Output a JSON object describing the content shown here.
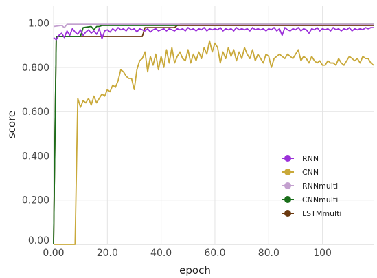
{
  "chart_data": {
    "type": "line",
    "xlabel": "epoch",
    "ylabel": "score",
    "xlim": [
      0,
      119
    ],
    "ylim": [
      0,
      1.08
    ],
    "x_ticks": [
      {
        "value": 0,
        "label": "0.00"
      },
      {
        "value": 20,
        "label": "20.0"
      },
      {
        "value": 40,
        "label": "40.0"
      },
      {
        "value": 60,
        "label": "60.0"
      },
      {
        "value": 80,
        "label": "80.0"
      },
      {
        "value": 100,
        "label": "100"
      }
    ],
    "y_ticks": [
      {
        "value": 0.0,
        "label": "0.00"
      },
      {
        "value": 0.2,
        "label": "0.200"
      },
      {
        "value": 0.4,
        "label": "0.400"
      },
      {
        "value": 0.6,
        "label": "0.600"
      },
      {
        "value": 0.8,
        "label": "0.800"
      },
      {
        "value": 1.0,
        "label": "1.00"
      }
    ],
    "grid": true,
    "legend_position": "bottom-right",
    "series": [
      {
        "name": "RNN",
        "color": "#9b30d9",
        "points": [
          [
            0,
            0.935
          ],
          [
            1,
            0.925
          ],
          [
            2,
            0.945
          ],
          [
            3,
            0.955
          ],
          [
            4,
            0.935
          ],
          [
            5,
            0.965
          ],
          [
            6,
            0.945
          ],
          [
            7,
            0.975
          ],
          [
            8,
            0.96
          ],
          [
            9,
            0.95
          ],
          [
            10,
            0.97
          ],
          [
            11,
            0.945
          ],
          [
            12,
            0.96
          ],
          [
            13,
            0.97
          ],
          [
            14,
            0.955
          ],
          [
            15,
            0.965
          ],
          [
            16,
            0.95
          ],
          [
            17,
            0.975
          ],
          [
            18,
            0.93
          ],
          [
            19,
            0.965
          ],
          [
            20,
            0.97
          ],
          [
            21,
            0.96
          ],
          [
            22,
            0.975
          ],
          [
            23,
            0.965
          ],
          [
            24,
            0.98
          ],
          [
            25,
            0.97
          ],
          [
            26,
            0.975
          ],
          [
            27,
            0.965
          ],
          [
            28,
            0.98
          ],
          [
            29,
            0.97
          ],
          [
            30,
            0.975
          ],
          [
            31,
            0.96
          ],
          [
            32,
            0.975
          ],
          [
            33,
            0.97
          ],
          [
            34,
            0.965
          ],
          [
            35,
            0.975
          ],
          [
            36,
            0.96
          ],
          [
            37,
            0.97
          ],
          [
            38,
            0.975
          ],
          [
            39,
            0.965
          ],
          [
            40,
            0.97
          ],
          [
            41,
            0.975
          ],
          [
            42,
            0.965
          ],
          [
            43,
            0.975
          ],
          [
            44,
            0.97
          ],
          [
            45,
            0.965
          ],
          [
            46,
            0.975
          ],
          [
            47,
            0.97
          ],
          [
            48,
            0.975
          ],
          [
            49,
            0.965
          ],
          [
            50,
            0.98
          ],
          [
            51,
            0.97
          ],
          [
            52,
            0.975
          ],
          [
            53,
            0.965
          ],
          [
            54,
            0.975
          ],
          [
            55,
            0.97
          ],
          [
            56,
            0.98
          ],
          [
            57,
            0.965
          ],
          [
            58,
            0.975
          ],
          [
            59,
            0.97
          ],
          [
            60,
            0.975
          ],
          [
            61,
            0.97
          ],
          [
            62,
            0.98
          ],
          [
            63,
            0.965
          ],
          [
            64,
            0.975
          ],
          [
            65,
            0.97
          ],
          [
            66,
            0.975
          ],
          [
            67,
            0.965
          ],
          [
            68,
            0.98
          ],
          [
            69,
            0.97
          ],
          [
            70,
            0.975
          ],
          [
            71,
            0.97
          ],
          [
            72,
            0.975
          ],
          [
            73,
            0.965
          ],
          [
            74,
            0.98
          ],
          [
            75,
            0.97
          ],
          [
            76,
            0.975
          ],
          [
            77,
            0.97
          ],
          [
            78,
            0.975
          ],
          [
            79,
            0.965
          ],
          [
            80,
            0.975
          ],
          [
            81,
            0.97
          ],
          [
            82,
            0.98
          ],
          [
            83,
            0.965
          ],
          [
            84,
            0.975
          ],
          [
            85,
            0.945
          ],
          [
            86,
            0.98
          ],
          [
            87,
            0.97
          ],
          [
            88,
            0.965
          ],
          [
            89,
            0.975
          ],
          [
            90,
            0.97
          ],
          [
            91,
            0.98
          ],
          [
            92,
            0.965
          ],
          [
            93,
            0.975
          ],
          [
            94,
            0.97
          ],
          [
            95,
            0.955
          ],
          [
            96,
            0.975
          ],
          [
            97,
            0.97
          ],
          [
            98,
            0.98
          ],
          [
            99,
            0.965
          ],
          [
            100,
            0.975
          ],
          [
            101,
            0.97
          ],
          [
            102,
            0.975
          ],
          [
            103,
            0.965
          ],
          [
            104,
            0.98
          ],
          [
            105,
            0.97
          ],
          [
            106,
            0.975
          ],
          [
            107,
            0.965
          ],
          [
            108,
            0.975
          ],
          [
            109,
            0.97
          ],
          [
            110,
            0.98
          ],
          [
            111,
            0.965
          ],
          [
            112,
            0.975
          ],
          [
            113,
            0.97
          ],
          [
            114,
            0.975
          ],
          [
            115,
            0.97
          ],
          [
            116,
            0.98
          ],
          [
            117,
            0.975
          ],
          [
            118,
            0.98
          ],
          [
            119,
            0.98
          ]
        ]
      },
      {
        "name": "CNN",
        "color": "#c9a93a",
        "points": [
          [
            0,
            0
          ],
          [
            8,
            0
          ],
          [
            9,
            0.66
          ],
          [
            10,
            0.62
          ],
          [
            11,
            0.65
          ],
          [
            12,
            0.64
          ],
          [
            13,
            0.66
          ],
          [
            14,
            0.63
          ],
          [
            15,
            0.67
          ],
          [
            16,
            0.64
          ],
          [
            17,
            0.66
          ],
          [
            18,
            0.68
          ],
          [
            19,
            0.67
          ],
          [
            20,
            0.7
          ],
          [
            21,
            0.69
          ],
          [
            22,
            0.72
          ],
          [
            23,
            0.71
          ],
          [
            24,
            0.74
          ],
          [
            25,
            0.79
          ],
          [
            26,
            0.78
          ],
          [
            27,
            0.76
          ],
          [
            28,
            0.75
          ],
          [
            29,
            0.75
          ],
          [
            30,
            0.7
          ],
          [
            31,
            0.79
          ],
          [
            32,
            0.83
          ],
          [
            33,
            0.84
          ],
          [
            34,
            0.87
          ],
          [
            35,
            0.78
          ],
          [
            36,
            0.85
          ],
          [
            37,
            0.81
          ],
          [
            38,
            0.86
          ],
          [
            39,
            0.79
          ],
          [
            40,
            0.85
          ],
          [
            41,
            0.8
          ],
          [
            42,
            0.88
          ],
          [
            43,
            0.82
          ],
          [
            44,
            0.89
          ],
          [
            45,
            0.82
          ],
          [
            46,
            0.85
          ],
          [
            47,
            0.87
          ],
          [
            48,
            0.84
          ],
          [
            49,
            0.83
          ],
          [
            50,
            0.88
          ],
          [
            51,
            0.82
          ],
          [
            52,
            0.86
          ],
          [
            53,
            0.83
          ],
          [
            54,
            0.87
          ],
          [
            55,
            0.84
          ],
          [
            56,
            0.89
          ],
          [
            57,
            0.86
          ],
          [
            58,
            0.92
          ],
          [
            59,
            0.87
          ],
          [
            60,
            0.91
          ],
          [
            61,
            0.89
          ],
          [
            62,
            0.82
          ],
          [
            63,
            0.87
          ],
          [
            64,
            0.84
          ],
          [
            65,
            0.89
          ],
          [
            66,
            0.85
          ],
          [
            67,
            0.88
          ],
          [
            68,
            0.83
          ],
          [
            69,
            0.87
          ],
          [
            70,
            0.84
          ],
          [
            71,
            0.89
          ],
          [
            72,
            0.86
          ],
          [
            73,
            0.84
          ],
          [
            74,
            0.88
          ],
          [
            75,
            0.83
          ],
          [
            76,
            0.86
          ],
          [
            77,
            0.84
          ],
          [
            78,
            0.82
          ],
          [
            79,
            0.86
          ],
          [
            80,
            0.85
          ],
          [
            81,
            0.8
          ],
          [
            82,
            0.84
          ],
          [
            83,
            0.85
          ],
          [
            84,
            0.86
          ],
          [
            85,
            0.85
          ],
          [
            86,
            0.84
          ],
          [
            87,
            0.86
          ],
          [
            88,
            0.85
          ],
          [
            89,
            0.84
          ],
          [
            90,
            0.86
          ],
          [
            91,
            0.88
          ],
          [
            92,
            0.83
          ],
          [
            93,
            0.85
          ],
          [
            94,
            0.84
          ],
          [
            95,
            0.82
          ],
          [
            96,
            0.85
          ],
          [
            97,
            0.83
          ],
          [
            98,
            0.82
          ],
          [
            99,
            0.83
          ],
          [
            100,
            0.81
          ],
          [
            101,
            0.81
          ],
          [
            102,
            0.83
          ],
          [
            103,
            0.82
          ],
          [
            104,
            0.82
          ],
          [
            105,
            0.81
          ],
          [
            106,
            0.84
          ],
          [
            107,
            0.82
          ],
          [
            108,
            0.81
          ],
          [
            109,
            0.83
          ],
          [
            110,
            0.85
          ],
          [
            111,
            0.84
          ],
          [
            112,
            0.83
          ],
          [
            113,
            0.84
          ],
          [
            114,
            0.82
          ],
          [
            115,
            0.85
          ],
          [
            116,
            0.84
          ],
          [
            117,
            0.84
          ],
          [
            118,
            0.82
          ],
          [
            119,
            0.81
          ]
        ]
      },
      {
        "name": "RNNmulti",
        "color": "#c3a0cf",
        "points": [
          [
            0,
            0.985
          ],
          [
            3,
            0.99
          ],
          [
            4,
            0.98
          ],
          [
            5,
            0.995
          ],
          [
            119,
            0.995
          ]
        ]
      },
      {
        "name": "CNNmulti",
        "color": "#1a6e1a",
        "points": [
          [
            0,
            0
          ],
          [
            1,
            0.94
          ],
          [
            10,
            0.94
          ],
          [
            11,
            0.98
          ],
          [
            14,
            0.985
          ],
          [
            15,
            0.97
          ],
          [
            16,
            0.985
          ],
          [
            17,
            0.985
          ],
          [
            18,
            0.99
          ],
          [
            46,
            0.99
          ],
          [
            47,
            0.995
          ],
          [
            119,
            0.995
          ]
        ]
      },
      {
        "name": "LSTMmulti",
        "color": "#6b3a10",
        "points": [
          [
            0,
            0
          ],
          [
            1,
            0.94
          ],
          [
            33,
            0.94
          ],
          [
            34,
            0.98
          ],
          [
            45,
            0.98
          ],
          [
            46,
            0.99
          ],
          [
            119,
            0.99
          ]
        ]
      }
    ]
  }
}
